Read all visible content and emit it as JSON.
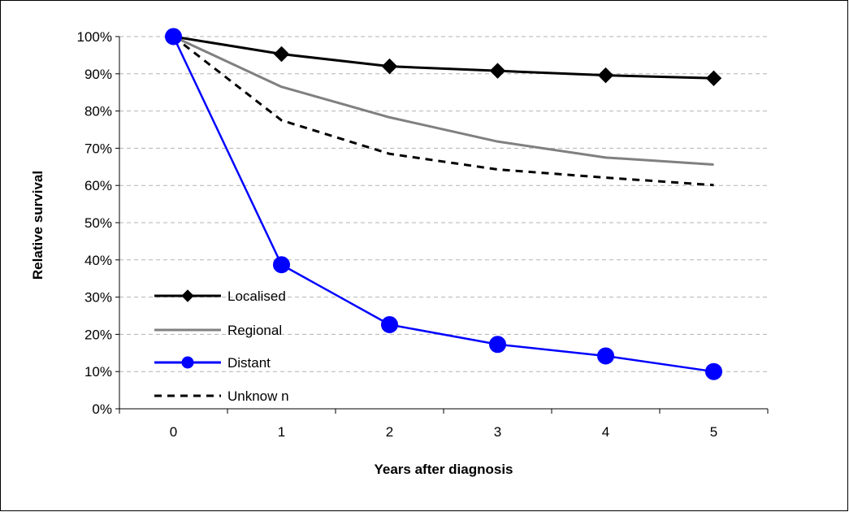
{
  "chart_data": {
    "type": "line",
    "title": "",
    "xlabel": "Years after diagnosis",
    "ylabel": "Relative survival",
    "x": [
      0,
      1,
      2,
      3,
      4,
      5
    ],
    "x_tick_labels": [
      "0",
      "1",
      "2",
      "3",
      "4",
      "5"
    ],
    "y_tick_labels": [
      "0%",
      "10%",
      "20%",
      "30%",
      "40%",
      "50%",
      "60%",
      "70%",
      "80%",
      "90%",
      "100%"
    ],
    "ylim": [
      0,
      100
    ],
    "y_unit": "%",
    "grid": "horizontal dashed",
    "legend_position": "bottom-left",
    "series": [
      {
        "name": "Localised",
        "values": [
          100,
          95.3,
          92.0,
          90.8,
          89.6,
          88.8
        ],
        "color": "#000000",
        "marker": "diamond",
        "dash": "solid"
      },
      {
        "name": "Regional",
        "values": [
          100,
          86.5,
          78.3,
          71.8,
          67.5,
          65.6
        ],
        "color": "#808080",
        "marker": "none",
        "dash": "solid"
      },
      {
        "name": "Distant",
        "values": [
          100,
          38.7,
          22.6,
          17.3,
          14.2,
          10.0
        ],
        "color": "#0000FF",
        "marker": "circle",
        "dash": "solid"
      },
      {
        "name": "Unknow n",
        "values": [
          100,
          77.5,
          68.5,
          64.3,
          62.1,
          60.1
        ],
        "color": "#000000",
        "marker": "none",
        "dash": "dashed"
      }
    ]
  }
}
